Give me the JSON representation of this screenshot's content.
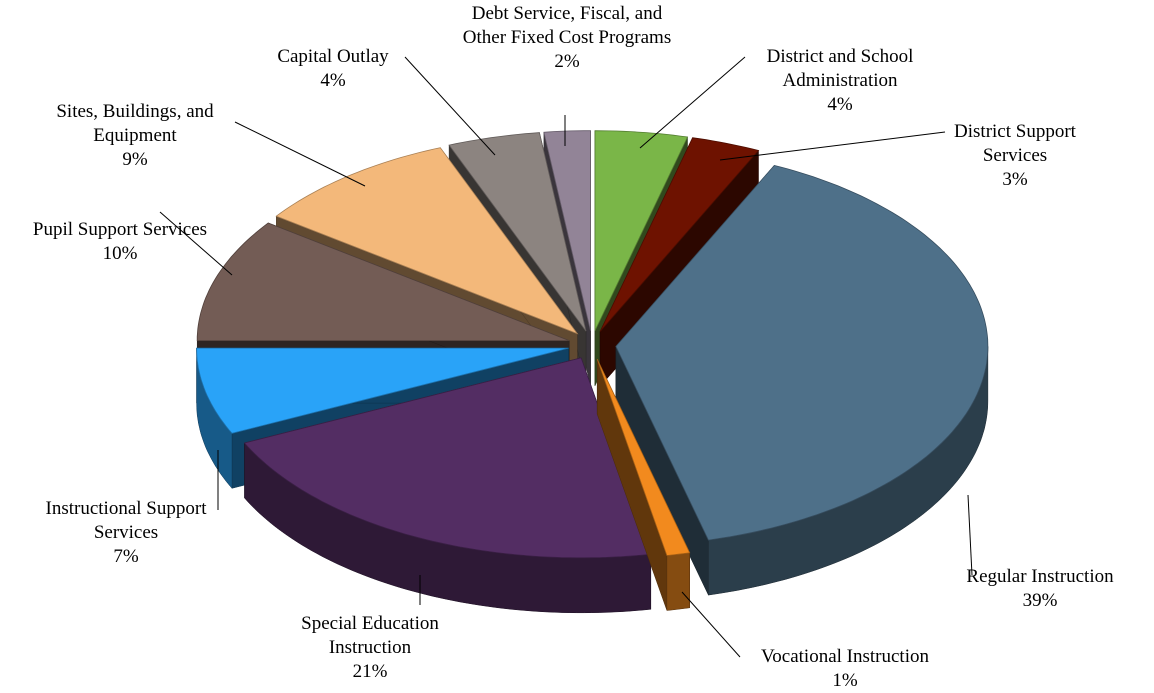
{
  "chart_data": {
    "type": "pie",
    "categories": [
      "District and School Administration",
      "District Support Services",
      "Regular Instruction",
      "Vocational Instruction",
      "Special Education Instruction",
      "Instructional Support Services",
      "Pupil Support Services",
      "Sites, Buildings, and Equipment",
      "Capital Outlay",
      "Debt Service, Fiscal, and Other Fixed Cost Programs"
    ],
    "values": [
      4,
      3,
      39,
      1,
      21,
      7,
      10,
      9,
      4,
      2
    ],
    "value_labels": [
      "4%",
      "3%",
      "39%",
      "1%",
      "21%",
      "7%",
      "10%",
      "9%",
      "4%",
      "2%"
    ],
    "colors": [
      "#7ab648",
      "#6e1200",
      "#4e7089",
      "#f28a1e",
      "#532d63",
      "#29a3f8",
      "#735c55",
      "#f3b87a",
      "#8c8480",
      "#928497"
    ]
  }
}
